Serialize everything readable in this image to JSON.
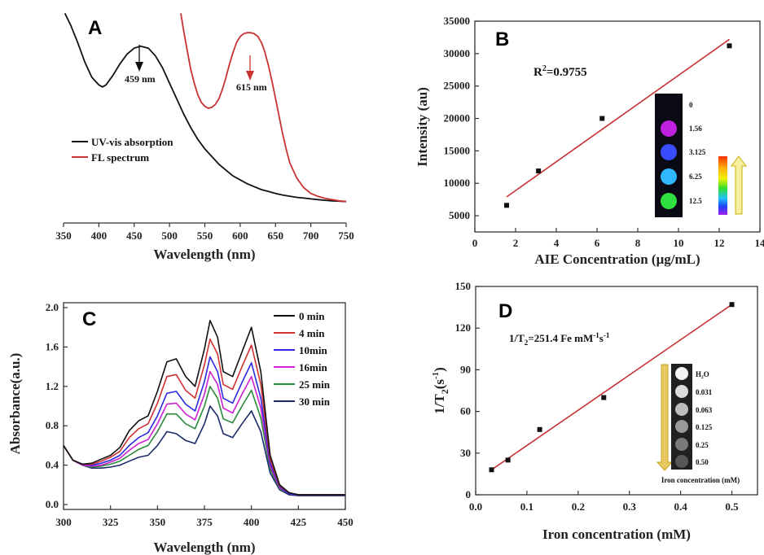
{
  "chart_data": [
    {
      "id": "A",
      "panel_label": "A",
      "type": "line",
      "xlabel": "Wavelength (nm)",
      "ylabel": "",
      "xlim": [
        350,
        750
      ],
      "xticks": [
        350,
        400,
        450,
        500,
        550,
        600,
        650,
        700,
        750
      ],
      "legend": "middle-left",
      "series": [
        {
          "name": "UV-vis absorption",
          "color": "#111111",
          "x": [
            352,
            360,
            370,
            380,
            390,
            400,
            405,
            410,
            420,
            430,
            440,
            450,
            459,
            470,
            480,
            490,
            500,
            510,
            520,
            530,
            540,
            550,
            560,
            570,
            580,
            590,
            600,
            610,
            620,
            630,
            640,
            650,
            660,
            670,
            680,
            690,
            700,
            710,
            720,
            730,
            740,
            750
          ],
          "y": [
            0.99,
            0.93,
            0.84,
            0.74,
            0.66,
            0.62,
            0.61,
            0.62,
            0.67,
            0.73,
            0.78,
            0.81,
            0.82,
            0.81,
            0.77,
            0.71,
            0.63,
            0.55,
            0.47,
            0.4,
            0.34,
            0.29,
            0.25,
            0.21,
            0.18,
            0.15,
            0.13,
            0.11,
            0.095,
            0.08,
            0.07,
            0.06,
            0.052,
            0.046,
            0.04,
            0.036,
            0.032,
            0.028,
            0.025,
            0.022,
            0.02,
            0.018
          ]
        },
        {
          "name": "FL spectrum",
          "color": "#c83232",
          "x": [
            516,
            520,
            525,
            530,
            535,
            540,
            545,
            550,
            555,
            560,
            565,
            570,
            575,
            580,
            585,
            590,
            595,
            600,
            605,
            610,
            615,
            620,
            625,
            630,
            635,
            640,
            645,
            650,
            655,
            660,
            665,
            670,
            680,
            690,
            700,
            710,
            720,
            730,
            740,
            750
          ],
          "y": [
            0.99,
            0.9,
            0.8,
            0.7,
            0.63,
            0.57,
            0.53,
            0.51,
            0.5,
            0.505,
            0.52,
            0.55,
            0.6,
            0.66,
            0.73,
            0.79,
            0.84,
            0.87,
            0.885,
            0.89,
            0.89,
            0.885,
            0.87,
            0.84,
            0.79,
            0.72,
            0.64,
            0.55,
            0.46,
            0.37,
            0.29,
            0.22,
            0.14,
            0.09,
            0.06,
            0.045,
            0.035,
            0.028,
            0.022,
            0.018
          ]
        }
      ],
      "annotations": [
        {
          "text": "459 nm",
          "x": 459
        },
        {
          "text": "615 nm",
          "x": 615
        }
      ]
    },
    {
      "id": "B",
      "panel_label": "B",
      "type": "scatter",
      "xlabel": "AIE Concentration (μg/mL)",
      "ylabel": "Intensity (au)",
      "xlim": [
        0,
        14
      ],
      "ylim": [
        2500,
        35000
      ],
      "xticks": [
        0,
        2,
        4,
        6,
        8,
        10,
        12,
        14
      ],
      "yticks": [
        5000,
        10000,
        15000,
        20000,
        25000,
        30000,
        35000
      ],
      "points": {
        "x": [
          1.56,
          3.125,
          6.25,
          12.5
        ],
        "y": [
          6600,
          11900,
          20000,
          31200
        ]
      },
      "fit": {
        "x": [
          1.56,
          12.5
        ],
        "y": [
          7900,
          32200
        ],
        "color": "#c83232"
      },
      "r2_prefix": "R",
      "r2_sup": "2",
      "r2_value": "=0.9755",
      "inset_labels": [
        "0",
        "1.56",
        "3.125",
        "6.25",
        "12.5"
      ],
      "inset_colors": [
        "#1a1020",
        "#c020e0",
        "#3a4cff",
        "#30b8ff",
        "#30e040"
      ]
    },
    {
      "id": "C",
      "panel_label": "C",
      "type": "line",
      "xlabel": "Wavelength (nm)",
      "ylabel": "Absorbance(a.u.)",
      "xlim": [
        300,
        450
      ],
      "ylim": [
        -0.05,
        2.05
      ],
      "xticks": [
        300,
        325,
        350,
        375,
        400,
        425,
        450
      ],
      "yticks": [
        0.0,
        0.4,
        0.8,
        1.2,
        1.6,
        2.0
      ],
      "legend": "top-right",
      "x": [
        300,
        305,
        310,
        315,
        320,
        325,
        330,
        335,
        340,
        345,
        350,
        355,
        360,
        365,
        370,
        375,
        378,
        382,
        385,
        390,
        395,
        400,
        405,
        410,
        415,
        420,
        425,
        430,
        435,
        440,
        445,
        450
      ],
      "series": [
        {
          "name": "0 min",
          "color": "#111111",
          "y": [
            0.6,
            0.45,
            0.41,
            0.42,
            0.46,
            0.5,
            0.58,
            0.75,
            0.85,
            0.9,
            1.15,
            1.45,
            1.48,
            1.3,
            1.2,
            1.58,
            1.87,
            1.7,
            1.35,
            1.3,
            1.55,
            1.8,
            1.35,
            0.5,
            0.2,
            0.12,
            0.1,
            0.1,
            0.1,
            0.1,
            0.1,
            0.1
          ]
        },
        {
          "name": "4 min",
          "color": "#d03030",
          "y": [
            0.6,
            0.45,
            0.41,
            0.41,
            0.44,
            0.48,
            0.54,
            0.68,
            0.77,
            0.82,
            1.03,
            1.3,
            1.32,
            1.16,
            1.08,
            1.42,
            1.68,
            1.53,
            1.22,
            1.17,
            1.4,
            1.62,
            1.22,
            0.46,
            0.19,
            0.12,
            0.1,
            0.1,
            0.1,
            0.1,
            0.1,
            0.1
          ]
        },
        {
          "name": "10min",
          "color": "#2a2ae0",
          "y": [
            0.6,
            0.45,
            0.41,
            0.4,
            0.42,
            0.45,
            0.5,
            0.6,
            0.68,
            0.73,
            0.9,
            1.13,
            1.15,
            1.02,
            0.95,
            1.25,
            1.5,
            1.35,
            1.08,
            1.03,
            1.24,
            1.44,
            1.08,
            0.42,
            0.18,
            0.11,
            0.1,
            0.1,
            0.1,
            0.1,
            0.1,
            0.1
          ]
        },
        {
          "name": "16min",
          "color": "#d020d0",
          "y": [
            0.6,
            0.45,
            0.4,
            0.39,
            0.4,
            0.43,
            0.47,
            0.55,
            0.62,
            0.66,
            0.82,
            1.02,
            1.03,
            0.92,
            0.86,
            1.12,
            1.35,
            1.22,
            0.98,
            0.93,
            1.12,
            1.3,
            0.98,
            0.39,
            0.17,
            0.11,
            0.1,
            0.1,
            0.1,
            0.1,
            0.1,
            0.1
          ]
        },
        {
          "name": "25 min",
          "color": "#2a8a3a",
          "y": [
            0.6,
            0.45,
            0.4,
            0.38,
            0.39,
            0.41,
            0.44,
            0.5,
            0.56,
            0.6,
            0.74,
            0.92,
            0.92,
            0.82,
            0.77,
            1.0,
            1.2,
            1.08,
            0.87,
            0.83,
            1.0,
            1.16,
            0.88,
            0.36,
            0.16,
            0.11,
            0.1,
            0.1,
            0.1,
            0.1,
            0.1,
            0.1
          ]
        },
        {
          "name": "30 min",
          "color": "#1a2a6a",
          "y": [
            0.6,
            0.45,
            0.4,
            0.37,
            0.37,
            0.38,
            0.4,
            0.44,
            0.48,
            0.5,
            0.6,
            0.74,
            0.72,
            0.65,
            0.62,
            0.82,
            1.0,
            0.9,
            0.72,
            0.68,
            0.82,
            0.95,
            0.74,
            0.32,
            0.15,
            0.1,
            0.09,
            0.09,
            0.09,
            0.09,
            0.09,
            0.09
          ]
        }
      ]
    },
    {
      "id": "D",
      "panel_label": "D",
      "type": "scatter",
      "xlabel": "Iron concentration (mM)",
      "ylabel_main": "1/T",
      "ylabel_sub": "2",
      "ylabel_tail": "(s",
      "ylabel_sup": "-1",
      "ylabel_end": ")",
      "xlim": [
        0,
        0.55
      ],
      "ylim": [
        0,
        150
      ],
      "xticks": [
        0.0,
        0.1,
        0.2,
        0.3,
        0.4,
        0.5
      ],
      "yticks": [
        0,
        30,
        60,
        90,
        120,
        150
      ],
      "points": {
        "x": [
          0.031,
          0.063,
          0.125,
          0.25,
          0.5
        ],
        "y": [
          18,
          25,
          47,
          70,
          137
        ]
      },
      "fit": {
        "x": [
          0.031,
          0.5
        ],
        "y": [
          18,
          137
        ],
        "color": "#c83232"
      },
      "eq_a": "1/T",
      "eq_b": "2",
      "eq_c": "=251.4 Fe mM",
      "eq_d": "-1",
      "eq_e": "s",
      "eq_f": "-1",
      "inset_labels": [
        "H₂O",
        "0.031",
        "0.063",
        "0.125",
        "0.25",
        "0.50"
      ],
      "inset_colors": [
        "#f4f4f4",
        "#dcdcdc",
        "#bdbdbd",
        "#9a9a9a",
        "#7a7a7a",
        "#575757"
      ],
      "inset_caption": "Iron concentration (mM)"
    }
  ]
}
